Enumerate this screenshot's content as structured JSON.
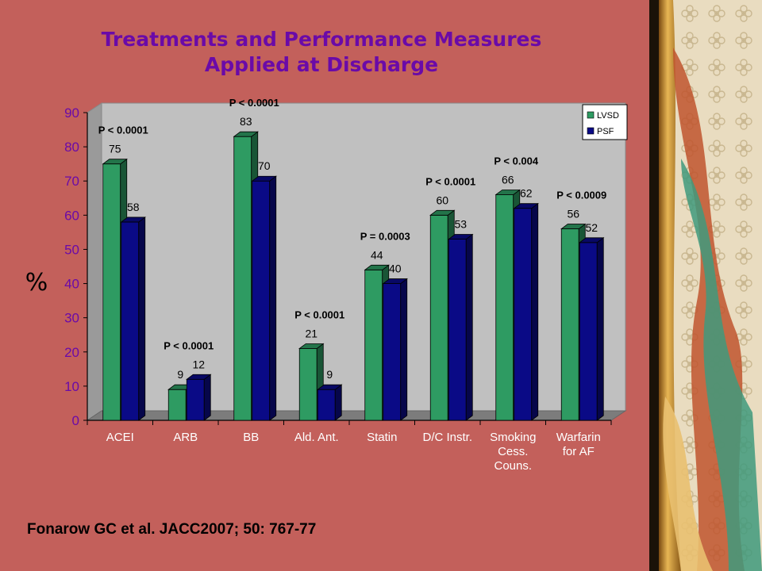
{
  "citation": "Fonarow GC et al. JACC2007; 50: 767-77",
  "colors": {
    "background": "#c3605b",
    "title": "#6a0aa8",
    "lvsd": "#2e9b62",
    "psf": "#0a0a86",
    "plot_area": "#c0c0c0"
  },
  "decor_icon": "flower-pattern-panel",
  "chart_data": {
    "type": "bar",
    "title": [
      "Treatments and Performance Measures",
      "Applied at Discharge"
    ],
    "ylabel": "%",
    "ylim": [
      0,
      90
    ],
    "yticks": [
      0,
      10,
      20,
      30,
      40,
      50,
      60,
      70,
      80,
      90
    ],
    "grid": false,
    "legend_position": "top-right",
    "categories": [
      [
        "ACEI"
      ],
      [
        "ARB"
      ],
      [
        "BB"
      ],
      [
        "Ald. Ant."
      ],
      [
        "Statin"
      ],
      [
        "D/C Instr."
      ],
      [
        "Smoking",
        "Cess.",
        "Couns."
      ],
      [
        "Warfarin",
        "for AF"
      ]
    ],
    "series": [
      {
        "name": "LVSD",
        "values": [
          75,
          9,
          83,
          21,
          44,
          60,
          66,
          56
        ]
      },
      {
        "name": "PSF",
        "values": [
          58,
          12,
          70,
          9,
          40,
          53,
          62,
          52
        ]
      }
    ],
    "p_values": [
      "P < 0.0001",
      "P < 0.0001",
      "P < 0.0001",
      "P < 0.0001",
      "P = 0.0003",
      "P < 0.0001",
      "P < 0.004",
      "P < 0.0009"
    ]
  }
}
